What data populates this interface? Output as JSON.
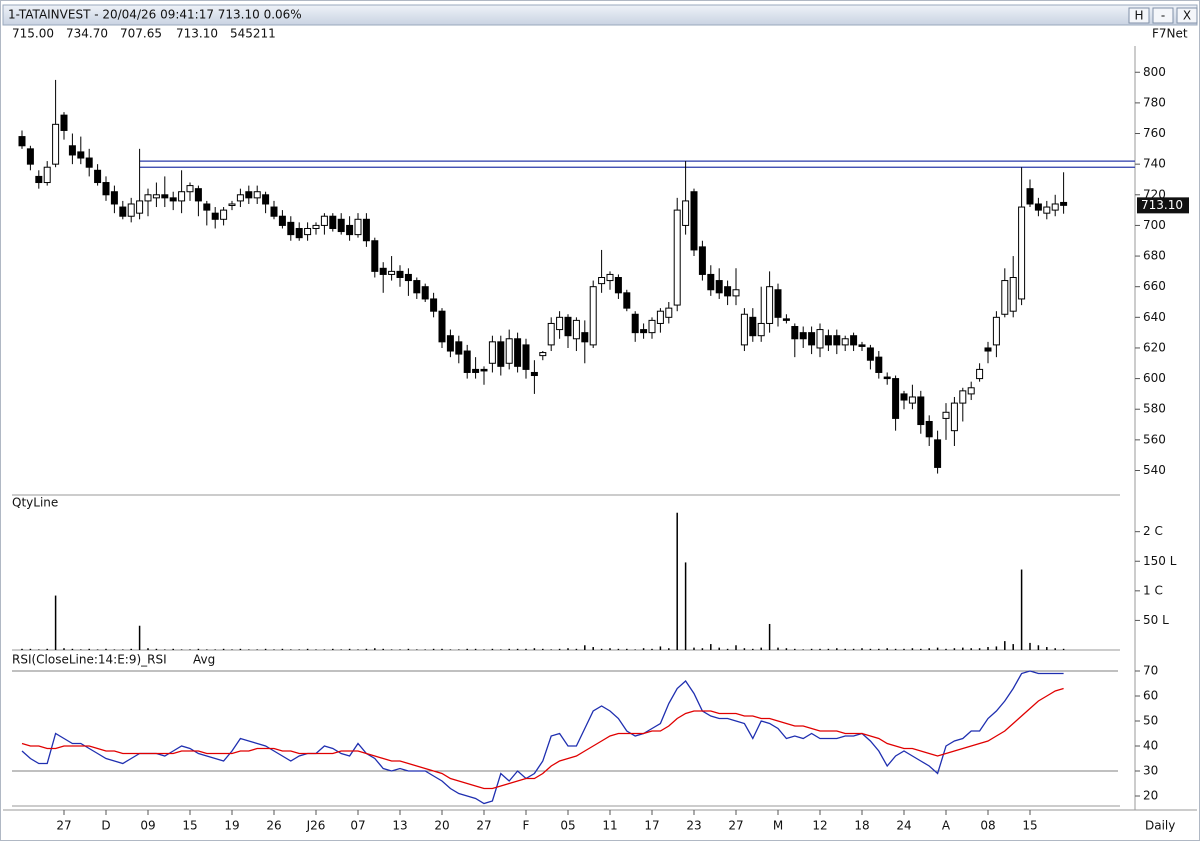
{
  "header": {
    "title": "1-TATAINVEST - 20/04/26 09:41:17 713.10 0.06%",
    "quote": [
      "715.00",
      "734.70",
      "707.65",
      "713.10",
      "545211"
    ],
    "source": "F7Net",
    "buttons": [
      "H",
      "-",
      "X"
    ]
  },
  "chart_data": [
    {
      "type": "candlestick",
      "up_color": "#ffffff",
      "down_color": "#000000",
      "ylim": [
        524,
        808
      ],
      "yticks": [
        540,
        560,
        580,
        600,
        620,
        640,
        660,
        680,
        700,
        720,
        740,
        760,
        780,
        800
      ],
      "hlines": [
        742,
        738
      ],
      "hline_color": "#2a3aa8",
      "last_price": {
        "value": 713.1,
        "label": "713.10"
      },
      "open": [
        758,
        750,
        732,
        728,
        740,
        772,
        752,
        748,
        744,
        736,
        728,
        722,
        712,
        706,
        708,
        716,
        718,
        720,
        718,
        716,
        722,
        724,
        714,
        708,
        704,
        713,
        716,
        722,
        718,
        720,
        712,
        706,
        702,
        698,
        694,
        698,
        700,
        706,
        704,
        700,
        694,
        704,
        690,
        672,
        668,
        670,
        668,
        664,
        660,
        652,
        644,
        628,
        624,
        618,
        606,
        606,
        610,
        624,
        610,
        626,
        622,
        604,
        615,
        622,
        632,
        640,
        626,
        630,
        622,
        662,
        664,
        666,
        656,
        642,
        632,
        630,
        636,
        640,
        648,
        700,
        722,
        686,
        668,
        664,
        660,
        654,
        622,
        640,
        628,
        636,
        658,
        639,
        634,
        630,
        630,
        620,
        628,
        628,
        622,
        628,
        622,
        620,
        614,
        601,
        600,
        590,
        584,
        588,
        572,
        560,
        574,
        566,
        584,
        590,
        600,
        620,
        622,
        642,
        644,
        652,
        724,
        714,
        708,
        710,
        715
      ],
      "high": [
        762,
        752,
        736,
        742,
        795,
        774,
        760,
        758,
        750,
        740,
        732,
        726,
        716,
        718,
        750,
        724,
        728,
        732,
        722,
        736,
        728,
        726,
        716,
        712,
        712,
        716,
        724,
        726,
        726,
        722,
        716,
        710,
        706,
        702,
        702,
        702,
        708,
        708,
        708,
        706,
        708,
        708,
        692,
        676,
        680,
        674,
        672,
        666,
        662,
        656,
        646,
        632,
        628,
        622,
        614,
        608,
        628,
        628,
        632,
        630,
        626,
        612,
        618,
        640,
        644,
        642,
        640,
        638,
        664,
        684,
        670,
        668,
        658,
        644,
        636,
        640,
        646,
        650,
        718,
        742,
        724,
        690,
        674,
        672,
        664,
        672,
        646,
        646,
        660,
        670,
        662,
        642,
        636,
        634,
        634,
        636,
        632,
        632,
        628,
        630,
        624,
        622,
        618,
        604,
        602,
        592,
        596,
        592,
        576,
        566,
        584,
        588,
        594,
        598,
        610,
        624,
        644,
        672,
        680,
        738,
        730,
        718,
        716,
        720,
        734.7
      ],
      "low": [
        750,
        736,
        724,
        726,
        738,
        756,
        740,
        740,
        732,
        726,
        716,
        708,
        704,
        702,
        704,
        706,
        712,
        712,
        710,
        708,
        716,
        706,
        700,
        698,
        700,
        710,
        712,
        714,
        714,
        708,
        704,
        698,
        690,
        690,
        690,
        694,
        694,
        696,
        694,
        690,
        692,
        686,
        666,
        656,
        664,
        660,
        654,
        652,
        650,
        640,
        620,
        614,
        610,
        600,
        600,
        596,
        604,
        602,
        606,
        604,
        600,
        590,
        612,
        618,
        626,
        620,
        618,
        610,
        620,
        656,
        658,
        652,
        644,
        624,
        626,
        626,
        630,
        636,
        644,
        694,
        680,
        664,
        654,
        652,
        648,
        648,
        618,
        624,
        624,
        630,
        634,
        636,
        614,
        620,
        616,
        614,
        618,
        616,
        618,
        618,
        618,
        606,
        600,
        596,
        566,
        580,
        580,
        564,
        556,
        538,
        560,
        556,
        572,
        586,
        598,
        610,
        614,
        640,
        640,
        648,
        712,
        706,
        704,
        706,
        707.65
      ],
      "close": [
        752,
        740,
        728,
        738,
        766,
        762,
        746,
        744,
        738,
        728,
        720,
        714,
        706,
        714,
        716,
        720,
        720,
        718,
        716,
        722,
        726,
        716,
        710,
        704,
        710,
        714,
        720,
        718,
        722,
        714,
        706,
        700,
        694,
        692,
        698,
        700,
        706,
        698,
        696,
        694,
        704,
        690,
        670,
        668,
        670,
        666,
        664,
        656,
        652,
        644,
        624,
        618,
        616,
        604,
        604,
        605,
        624,
        608,
        626,
        608,
        606,
        602,
        617,
        636,
        640,
        628,
        638,
        624,
        660,
        666,
        668,
        656,
        646,
        630,
        630,
        638,
        644,
        646,
        710,
        716,
        684,
        668,
        658,
        656,
        654,
        658,
        642,
        628,
        636,
        660,
        640,
        638,
        626,
        626,
        622,
        632,
        622,
        622,
        626,
        622,
        621,
        612,
        604,
        600,
        574,
        586,
        588,
        570,
        562,
        542,
        578,
        584,
        592,
        594,
        606,
        618,
        640,
        664,
        666,
        712,
        714,
        710,
        712,
        714,
        713.1
      ]
    },
    {
      "type": "bar",
      "title": "QtyLine",
      "color": "#000000",
      "ylim": [
        0,
        240
      ],
      "yticks": [
        {
          "value": 50,
          "label": "50 L"
        },
        {
          "value": 100,
          "label": "1 C"
        },
        {
          "value": 150,
          "label": "150 L"
        },
        {
          "value": 200,
          "label": "2 C"
        }
      ],
      "values": [
        2,
        2,
        1,
        2,
        92,
        3,
        2,
        1,
        2,
        1,
        2,
        1,
        1,
        2,
        41,
        3,
        2,
        1,
        2,
        1,
        1,
        2,
        1,
        1,
        2,
        1,
        2,
        1,
        1,
        2,
        1,
        2,
        1,
        1,
        2,
        1,
        1,
        2,
        1,
        2,
        1,
        2,
        3,
        2,
        1,
        1,
        2,
        1,
        1,
        2,
        2,
        1,
        1,
        2,
        2,
        1,
        2,
        1,
        2,
        2,
        2,
        3,
        2,
        1,
        2,
        3,
        2,
        8,
        5,
        2,
        3,
        2,
        2,
        1,
        3,
        2,
        6,
        3,
        232,
        148,
        4,
        3,
        10,
        4,
        2,
        8,
        3,
        2,
        4,
        44,
        4,
        3,
        2,
        1,
        2,
        2,
        2,
        3,
        2,
        2,
        3,
        2,
        2,
        3,
        2,
        2,
        3,
        2,
        3,
        4,
        2,
        3,
        4,
        3,
        3,
        5,
        6,
        15,
        10,
        136,
        12,
        8,
        5,
        3,
        2
      ]
    },
    {
      "type": "line",
      "ylim": [
        16,
        75
      ],
      "yticks": [
        20,
        30,
        40,
        50,
        60,
        70
      ],
      "reference_lines": [
        70,
        30
      ],
      "timeframe": "Daily",
      "categories": [
        null,
        null,
        null,
        null,
        null,
        "27",
        null,
        null,
        null,
        null,
        "D",
        null,
        null,
        null,
        null,
        "09",
        null,
        null,
        null,
        null,
        "15",
        null,
        null,
        null,
        null,
        "19",
        null,
        null,
        null,
        null,
        "26",
        null,
        null,
        null,
        null,
        "J26",
        null,
        null,
        null,
        null,
        "07",
        null,
        null,
        null,
        null,
        "13",
        null,
        null,
        null,
        null,
        "20",
        null,
        null,
        null,
        null,
        "27",
        null,
        null,
        null,
        null,
        "F",
        null,
        null,
        null,
        null,
        "05",
        null,
        null,
        null,
        null,
        "11",
        null,
        null,
        null,
        null,
        "17",
        null,
        null,
        null,
        null,
        "23",
        null,
        null,
        null,
        null,
        "27",
        null,
        null,
        null,
        null,
        "M",
        null,
        null,
        null,
        null,
        "12",
        null,
        null,
        null,
        null,
        "18",
        null,
        null,
        null,
        null,
        "24",
        null,
        null,
        null,
        null,
        "A",
        null,
        null,
        null,
        null,
        "08",
        null,
        null,
        null,
        null,
        "15",
        null,
        null,
        null,
        null
      ],
      "series": [
        {
          "name": "RSI(CloseLine:14:E:9)_RSI",
          "color": "#1f2fb0",
          "values": [
            38,
            35,
            33,
            33,
            45,
            43,
            41,
            41,
            39,
            37,
            35,
            34,
            33,
            35,
            37,
            37,
            37,
            36,
            38,
            40,
            39,
            37,
            36,
            35,
            34,
            38,
            43,
            42,
            41,
            40,
            38,
            36,
            34,
            36,
            37,
            37,
            40,
            39,
            37,
            36,
            41,
            37,
            35,
            31,
            30,
            31,
            30,
            30,
            30,
            28,
            26,
            23,
            21,
            20,
            19,
            17,
            18,
            29,
            26,
            30,
            27,
            29,
            34,
            44,
            45,
            40,
            40,
            47,
            54,
            56,
            54,
            51,
            46,
            44,
            45,
            47,
            49,
            57,
            63,
            66,
            61,
            54,
            52,
            51,
            51,
            50,
            49,
            43,
            50,
            49,
            47,
            43,
            44,
            43,
            45,
            43,
            43,
            43,
            44,
            44,
            45,
            42,
            38,
            32,
            36,
            38,
            36,
            34,
            32,
            29,
            40,
            42,
            43,
            46,
            46,
            51,
            54,
            58,
            63,
            69,
            70,
            69,
            69,
            69,
            69
          ]
        },
        {
          "name": "Avg",
          "color": "#e00000",
          "values": [
            41,
            40,
            40,
            39,
            39,
            40,
            40,
            40,
            40,
            39,
            38,
            38,
            37,
            37,
            37,
            37,
            37,
            37,
            37,
            38,
            38,
            38,
            37,
            37,
            37,
            37,
            38,
            38,
            39,
            39,
            39,
            38,
            38,
            37,
            37,
            37,
            37,
            37,
            38,
            38,
            38,
            37,
            36,
            35,
            34,
            34,
            33,
            32,
            31,
            30,
            29,
            27,
            26,
            25,
            24,
            23,
            23,
            24,
            25,
            26,
            27,
            27,
            29,
            32,
            34,
            35,
            36,
            38,
            40,
            42,
            44,
            45,
            45,
            45,
            45,
            46,
            46,
            48,
            51,
            53,
            54,
            54,
            54,
            53,
            53,
            53,
            52,
            52,
            51,
            51,
            50,
            49,
            48,
            48,
            47,
            46,
            46,
            46,
            45,
            45,
            45,
            44,
            43,
            41,
            40,
            39,
            39,
            38,
            37,
            36,
            37,
            38,
            39,
            40,
            41,
            42,
            44,
            46,
            49,
            52,
            55,
            58,
            60,
            62,
            63
          ]
        }
      ]
    }
  ]
}
